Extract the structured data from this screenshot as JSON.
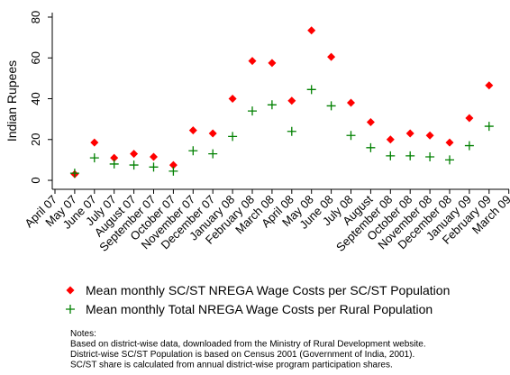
{
  "chart_data": {
    "type": "scatter",
    "ylabel": "Indian Rupees",
    "categories": [
      "April 07",
      "May 07",
      "June 07",
      "July 07",
      "August 07",
      "September 07",
      "October 07",
      "November 07",
      "December 07",
      "January 08",
      "February 08",
      "March 08",
      "April 08",
      "May 08",
      "June 08",
      "July 08",
      "August",
      "September 08",
      "October 08",
      "November 08",
      "December 08",
      "January 09",
      "February 09",
      "March 09"
    ],
    "series": [
      {
        "name": "Mean monthly SC/ST NREGA Wage Costs per SC/ST Population",
        "color": "#ff0000",
        "marker": "diamond",
        "values": [
          null,
          3,
          18.5,
          11,
          13,
          11.5,
          7.5,
          24.5,
          23,
          40,
          58.5,
          57.5,
          39,
          73.5,
          60.5,
          38,
          28.5,
          20,
          23,
          22,
          18.5,
          30.5,
          46.5,
          null
        ]
      },
      {
        "name": "Mean monthly Total NREGA Wage Costs per Rural Population",
        "color": "#008000",
        "marker": "plus",
        "values": [
          null,
          3.5,
          11,
          8,
          7.5,
          6.5,
          4.5,
          14.5,
          13,
          21.5,
          34,
          37,
          24,
          44.5,
          36.5,
          22,
          16,
          12,
          12,
          11.5,
          10,
          17,
          26.5,
          null
        ]
      }
    ],
    "ylim": [
      -4.4,
      82.2
    ],
    "yticks": [
      0,
      20,
      40,
      60,
      80
    ],
    "grid": false,
    "notes": [
      "Notes:",
      "Based on district-wise data, downloaded from the Ministry of Rural Development website.",
      "District-wise SC/ST Population is based on Census 2001 (Government of India, 2001).",
      "SC/ST share is calculated from annual district-wise program participation shares."
    ]
  }
}
